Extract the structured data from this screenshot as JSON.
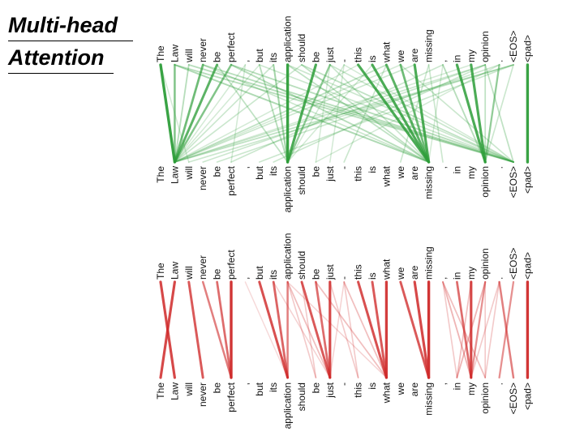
{
  "title": {
    "line1": "Multi-head",
    "line2": "Attention"
  },
  "tokens": [
    "The",
    "Law",
    "will",
    "never",
    "be",
    "perfect",
    ",",
    "but",
    "its",
    "application",
    "should",
    "be",
    "just",
    "-",
    "this",
    "is",
    "what",
    "we",
    "are",
    "missing",
    ",",
    "in",
    "my",
    "opinion",
    ".",
    "<EOS>",
    "<pad>"
  ],
  "heads": [
    {
      "name": "head-green",
      "color": "#2e9e3a",
      "links": [
        [
          0,
          1,
          1.0
        ],
        [
          1,
          1,
          0.6
        ],
        [
          2,
          1,
          0.3
        ],
        [
          3,
          1,
          0.7
        ],
        [
          4,
          1,
          0.8
        ],
        [
          5,
          1,
          0.6
        ],
        [
          6,
          1,
          0.15
        ],
        [
          7,
          1,
          0.15
        ],
        [
          8,
          1,
          0.2
        ],
        [
          10,
          1,
          0.2
        ],
        [
          14,
          1,
          0.15
        ],
        [
          16,
          1,
          0.25
        ],
        [
          17,
          1,
          0.15
        ],
        [
          18,
          1,
          0.2
        ],
        [
          22,
          1,
          0.15
        ],
        [
          23,
          1,
          0.2
        ],
        [
          9,
          9,
          1.0
        ],
        [
          11,
          9,
          0.9
        ],
        [
          8,
          9,
          0.4
        ],
        [
          12,
          9,
          0.5
        ],
        [
          4,
          9,
          0.25
        ],
        [
          7,
          9,
          0.3
        ],
        [
          13,
          9,
          0.15
        ],
        [
          15,
          9,
          0.15
        ],
        [
          14,
          19,
          0.9
        ],
        [
          15,
          19,
          0.9
        ],
        [
          16,
          19,
          0.8
        ],
        [
          17,
          19,
          0.7
        ],
        [
          18,
          19,
          0.9
        ],
        [
          3,
          19,
          0.2
        ],
        [
          5,
          19,
          0.3
        ],
        [
          1,
          19,
          0.35
        ],
        [
          10,
          19,
          0.25
        ],
        [
          9,
          19,
          0.25
        ],
        [
          12,
          19,
          0.2
        ],
        [
          20,
          19,
          0.15
        ],
        [
          21,
          23,
          0.9
        ],
        [
          22,
          23,
          0.9
        ],
        [
          24,
          23,
          0.5
        ],
        [
          20,
          23,
          0.3
        ],
        [
          23,
          23,
          0.25
        ],
        [
          25,
          23,
          0.2
        ],
        [
          3,
          25,
          0.3
        ],
        [
          5,
          25,
          0.3
        ],
        [
          1,
          25,
          0.3
        ],
        [
          2,
          25,
          0.3
        ],
        [
          7,
          25,
          0.2
        ],
        [
          10,
          25,
          0.25
        ],
        [
          13,
          25,
          0.15
        ],
        [
          17,
          25,
          0.2
        ],
        [
          23,
          25,
          0.25
        ],
        [
          12,
          25,
          0.2
        ],
        [
          9,
          25,
          0.2
        ],
        [
          25,
          1,
          0.25
        ],
        [
          25,
          2,
          0.2
        ],
        [
          23,
          3,
          0.2
        ],
        [
          24,
          4,
          0.2
        ],
        [
          20,
          5,
          0.2
        ],
        [
          25,
          7,
          0.2
        ],
        [
          23,
          8,
          0.2
        ],
        [
          24,
          11,
          0.15
        ],
        [
          16,
          13,
          0.2
        ],
        [
          19,
          17,
          0.2
        ],
        [
          19,
          20,
          0.2
        ],
        [
          0,
          2,
          0.15
        ],
        [
          6,
          5,
          0.15
        ],
        [
          12,
          11,
          0.15
        ],
        [
          13,
          12,
          0.15
        ],
        [
          26,
          26,
          1.0
        ]
      ]
    },
    {
      "name": "head-red",
      "color": "#cf2a2a",
      "links": [
        [
          0,
          1,
          0.9
        ],
        [
          1,
          0,
          0.9
        ],
        [
          2,
          3,
          0.8
        ],
        [
          3,
          5,
          0.6
        ],
        [
          4,
          5,
          0.7
        ],
        [
          5,
          5,
          1.0
        ],
        [
          7,
          9,
          0.85
        ],
        [
          8,
          9,
          0.75
        ],
        [
          9,
          9,
          0.6
        ],
        [
          10,
          12,
          0.8
        ],
        [
          11,
          12,
          0.7
        ],
        [
          12,
          12,
          0.9
        ],
        [
          14,
          16,
          0.85
        ],
        [
          15,
          16,
          0.8
        ],
        [
          16,
          16,
          0.95
        ],
        [
          17,
          19,
          0.8
        ],
        [
          18,
          19,
          0.9
        ],
        [
          19,
          19,
          1.0
        ],
        [
          21,
          22,
          0.7
        ],
        [
          22,
          22,
          0.9
        ],
        [
          23,
          22,
          0.5
        ],
        [
          20,
          22,
          0.3
        ],
        [
          24,
          25,
          0.6
        ],
        [
          25,
          24,
          0.5
        ],
        [
          26,
          26,
          1.0
        ],
        [
          9,
          11,
          0.2
        ],
        [
          9,
          12,
          0.25
        ],
        [
          10,
          11,
          0.2
        ],
        [
          11,
          16,
          0.25
        ],
        [
          12,
          14,
          0.2
        ],
        [
          13,
          16,
          0.25
        ],
        [
          9,
          16,
          0.15
        ],
        [
          13,
          14,
          0.2
        ],
        [
          8,
          12,
          0.15
        ],
        [
          20,
          23,
          0.25
        ],
        [
          22,
          21,
          0.25
        ],
        [
          23,
          21,
          0.3
        ],
        [
          20,
          21,
          0.2
        ],
        [
          24,
          22,
          0.2
        ],
        [
          23,
          23,
          0.2
        ],
        [
          24,
          23,
          0.2
        ],
        [
          6,
          9,
          0.12
        ],
        [
          13,
          12,
          0.15
        ]
      ]
    }
  ]
}
